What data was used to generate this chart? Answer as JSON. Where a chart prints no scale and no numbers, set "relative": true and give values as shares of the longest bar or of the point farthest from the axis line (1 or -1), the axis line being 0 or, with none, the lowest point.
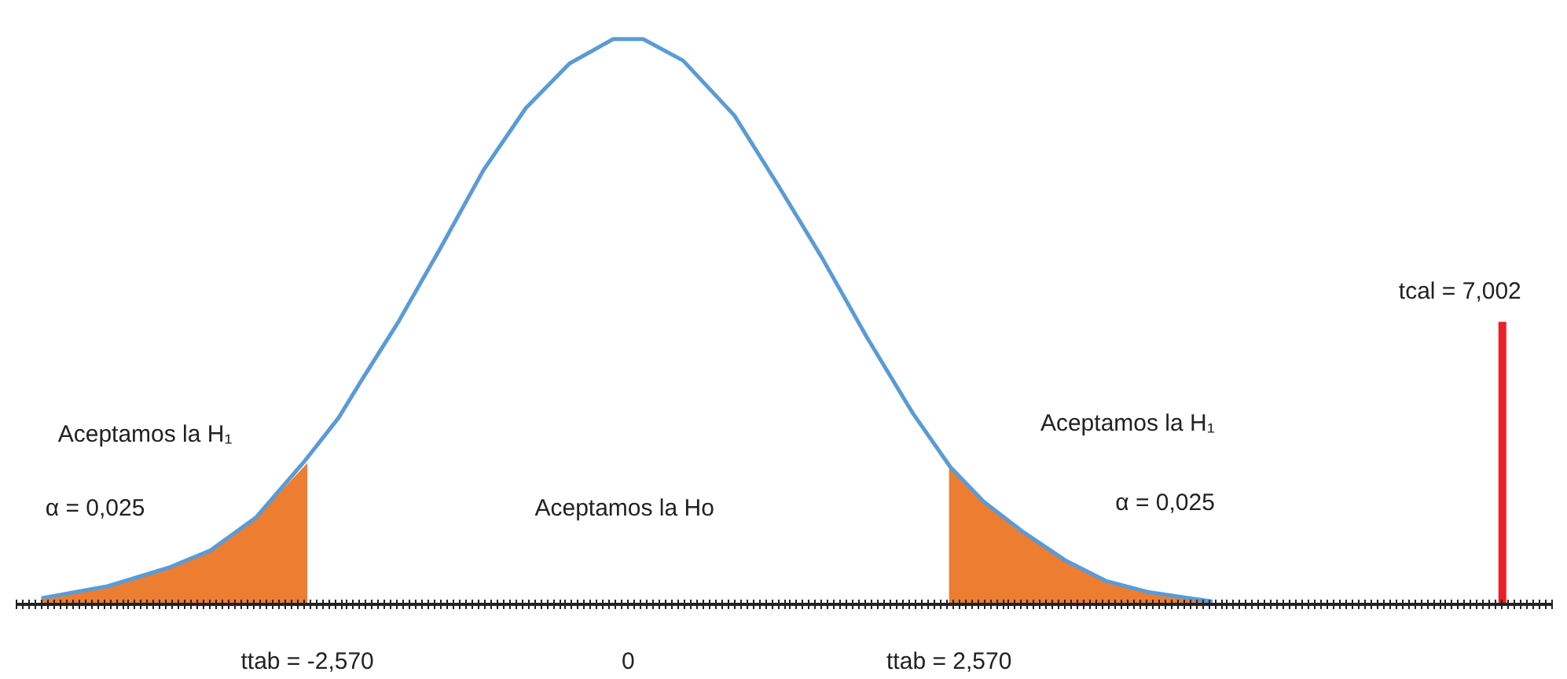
{
  "chart_data": {
    "type": "line",
    "relative": true,
    "series": [
      {
        "color": "#5b9bd5",
        "x": [
          -4.7,
          -4.17,
          -3.68,
          -3.35,
          -2.98,
          -2.59,
          -2.32,
          -2.14,
          -1.84,
          -1.5,
          -1.16,
          -0.82,
          -0.47,
          -0.12,
          0.12,
          0.44,
          0.85,
          1.21,
          1.55,
          1.91,
          2.28,
          2.58,
          2.85,
          3.17,
          3.5,
          3.83,
          4.16,
          4.68
        ],
        "values": [
          0.011,
          0.032,
          0.065,
          0.095,
          0.154,
          0.254,
          0.33,
          0.395,
          0.5,
          0.632,
          0.768,
          0.878,
          0.957,
          1.0,
          1.0,
          0.962,
          0.865,
          0.738,
          0.614,
          0.473,
          0.338,
          0.243,
          0.181,
          0.127,
          0.078,
          0.041,
          0.022,
          0.005
        ]
      },
      {
        "type": "area",
        "color": "#ed7d31",
        "x": [
          -4.7,
          -4.17,
          -3.68,
          -3.35,
          -2.98,
          -2.57
        ],
        "values": [
          0.011,
          0.032,
          0.065,
          0.095,
          0.154,
          0.25
        ]
      },
      {
        "type": "area",
        "color": "#ed7d31",
        "x": [
          2.57,
          2.85,
          3.17,
          3.5,
          3.83,
          4.16,
          4.68
        ],
        "values": [
          0.245,
          0.181,
          0.127,
          0.078,
          0.041,
          0.022,
          0.005
        ]
      }
    ],
    "xlim": [
      -4.9,
      7.4
    ],
    "xticks": [
      {
        "value": -2.57,
        "label": "ttab = -2,570"
      },
      0,
      {
        "value": 2.57,
        "label": "ttab = 2,570"
      }
    ],
    "ref_lines": [
      {
        "axis": "x",
        "value": 7.002,
        "label": "tcal = 7,002",
        "color": "#e8202a"
      }
    ],
    "annotations": [
      "Aceptamos la H₁",
      "α = 0,025",
      "Aceptamos la Ho",
      "Aceptamos la H₁",
      "α = 0,025"
    ],
    "grid": false
  }
}
